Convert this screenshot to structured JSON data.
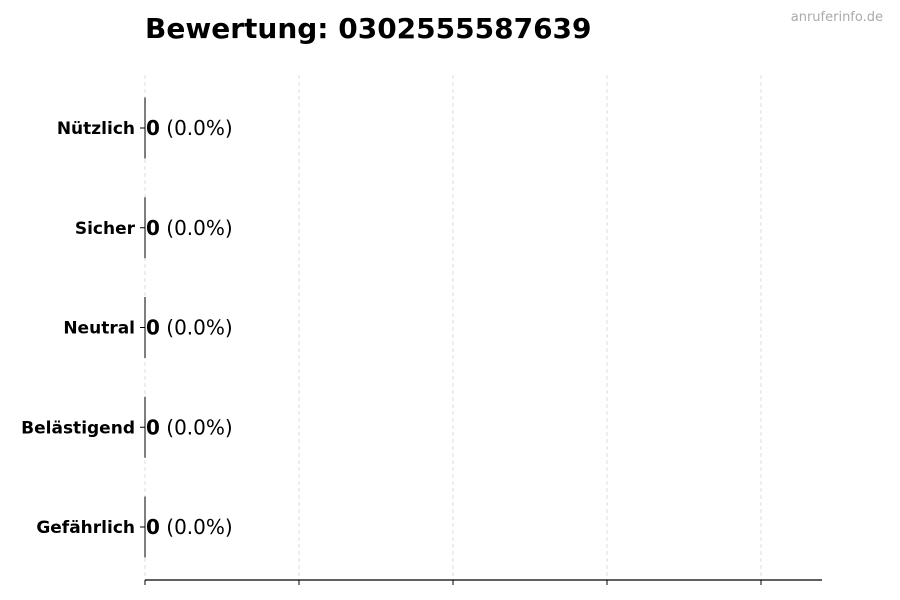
{
  "chart_data": {
    "type": "bar",
    "orientation": "horizontal",
    "title": "Bewertung: 0302555587639",
    "categories": [
      "Nützlich",
      "Sicher",
      "Neutral",
      "Belästigend",
      "Gefährlich"
    ],
    "values": [
      0,
      0,
      0,
      0,
      0
    ],
    "data_labels": [
      {
        "count": "0",
        "percent": "(0.0%)"
      },
      {
        "count": "0",
        "percent": "(0.0%)"
      },
      {
        "count": "0",
        "percent": "(0.0%)"
      },
      {
        "count": "0",
        "percent": "(0.0%)"
      },
      {
        "count": "0",
        "percent": "(0.0%)"
      }
    ],
    "xlabel": "",
    "ylabel": "",
    "x_tick_count": 5,
    "x_tick_labels_shown": false,
    "grid": "vertical dashed",
    "colors": {
      "grid": "#dddddd",
      "axis": "#000000",
      "bar_edge": "#000000"
    }
  },
  "watermark": "anruferinfo.de"
}
